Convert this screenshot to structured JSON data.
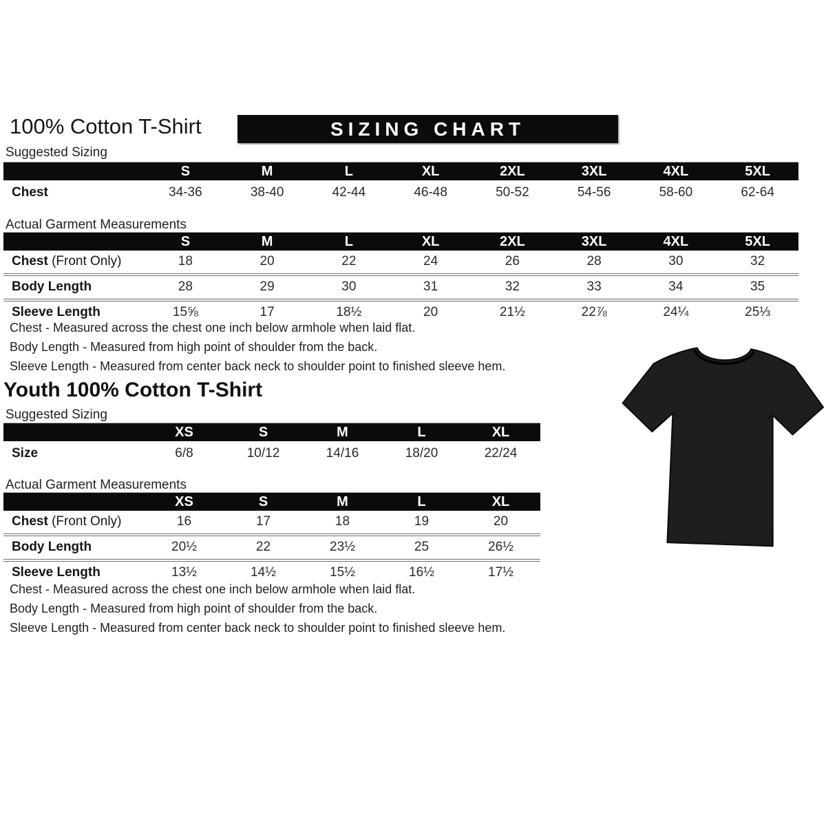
{
  "header": {
    "title": "100% Cotton T-Shirt",
    "banner": "SIZING CHART"
  },
  "adult": {
    "suggested": {
      "label": "Suggested Sizing",
      "columns": [
        "S",
        "M",
        "L",
        "XL",
        "2XL",
        "3XL",
        "4XL",
        "5XL"
      ],
      "rows": [
        {
          "label": "Chest",
          "values": [
            "34-36",
            "38-40",
            "42-44",
            "46-48",
            "50-52",
            "54-56",
            "58-60",
            "62-64"
          ]
        }
      ]
    },
    "measurements": {
      "label": "Actual Garment Measurements",
      "columns": [
        "S",
        "M",
        "L",
        "XL",
        "2XL",
        "3XL",
        "4XL",
        "5XL"
      ],
      "rows": [
        {
          "label": "Chest",
          "suffix": "(Front Only)",
          "values": [
            "18",
            "20",
            "22",
            "24",
            "26",
            "28",
            "30",
            "32"
          ]
        },
        {
          "label": "Body Length",
          "values": [
            "28",
            "29",
            "30",
            "31",
            "32",
            "33",
            "34",
            "35"
          ]
        },
        {
          "label": "Sleeve Length",
          "values": [
            "15⅝",
            "17",
            "18½",
            "20",
            "21½",
            "22⅞",
            "24¼",
            "25⅓"
          ]
        }
      ]
    },
    "notes": [
      "Chest - Measured across the chest one inch below armhole when laid flat.",
      "Body Length - Measured from high point of shoulder from the back.",
      "Sleeve Length - Measured from center back neck to shoulder point to finished sleeve hem."
    ]
  },
  "youth": {
    "title": "Youth 100% Cotton T-Shirt",
    "suggested": {
      "label": "Suggested Sizing",
      "columns": [
        "XS",
        "S",
        "M",
        "L",
        "XL"
      ],
      "rows": [
        {
          "label": "Size",
          "values": [
            "6/8",
            "10/12",
            "14/16",
            "18/20",
            "22/24"
          ]
        }
      ]
    },
    "measurements": {
      "label": "Actual Garment Measurements",
      "columns": [
        "XS",
        "S",
        "M",
        "L",
        "XL"
      ],
      "rows": [
        {
          "label": "Chest",
          "suffix": "(Front Only)",
          "values": [
            "16",
            "17",
            "18",
            "19",
            "20"
          ]
        },
        {
          "label": "Body Length",
          "values": [
            "20½",
            "22",
            "23½",
            "25",
            "26½"
          ]
        },
        {
          "label": "Sleeve Length",
          "values": [
            "13½",
            "14½",
            "15½",
            "16½",
            "17½"
          ]
        }
      ]
    },
    "notes": [
      "Chest - Measured across the chest one inch below armhole when laid flat.",
      "Body Length - Measured from high point of shoulder from the back.",
      "Sleeve Length - Measured from center back neck to shoulder point to finished sleeve hem."
    ]
  },
  "colors": {
    "bar_bg": "#0b0b0b",
    "bar_text": "#ffffff",
    "shirt": "#1e1e1e"
  }
}
